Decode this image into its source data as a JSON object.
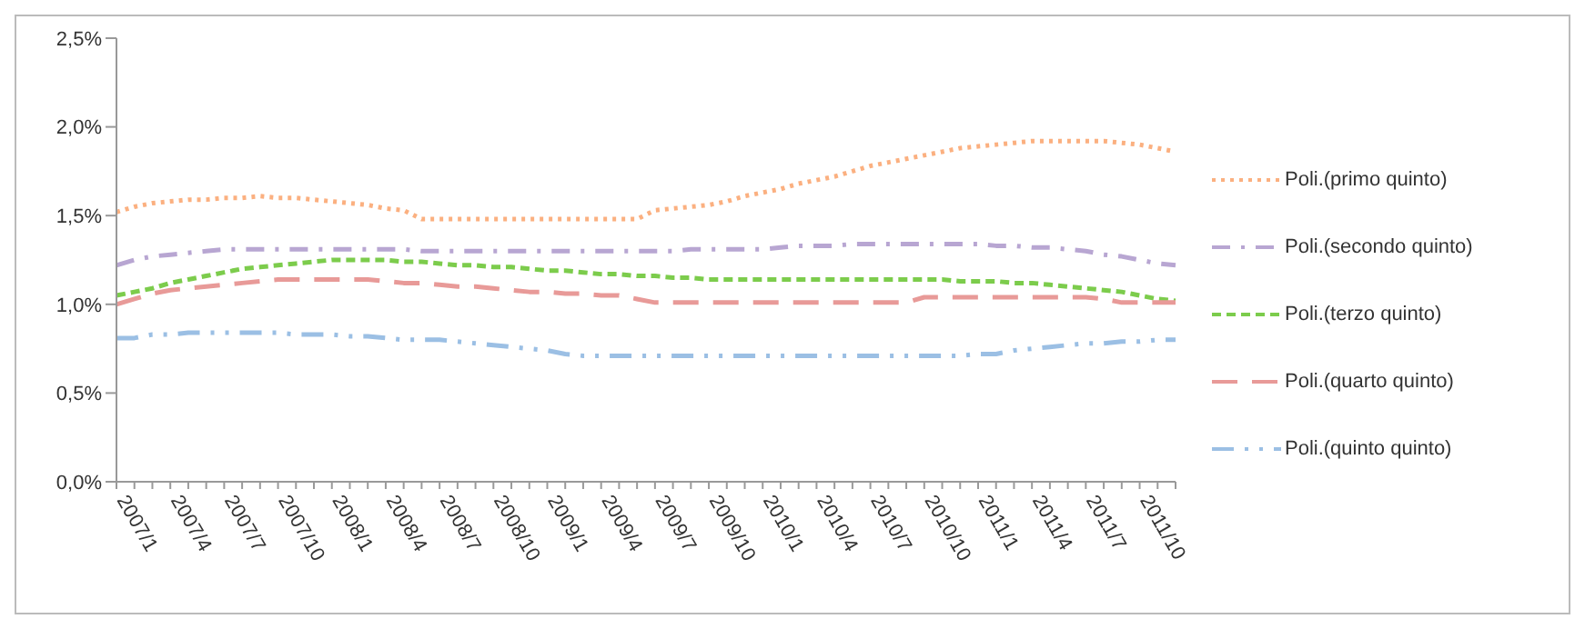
{
  "chart_data": {
    "type": "line",
    "categories": [
      "2007/1",
      null,
      null,
      "2007/4",
      null,
      null,
      "2007/7",
      null,
      null,
      "2007/10",
      null,
      null,
      "2008/1",
      null,
      null,
      "2008/4",
      null,
      null,
      "2008/7",
      null,
      null,
      "2008/10",
      null,
      null,
      "2009/1",
      null,
      null,
      "2009/4",
      null,
      null,
      "2009/7",
      null,
      null,
      "2009/10",
      null,
      null,
      "2010/1",
      null,
      null,
      "2010/4",
      null,
      null,
      "2010/7",
      null,
      null,
      "2010/10",
      null,
      null,
      "2011/1",
      null,
      null,
      "2011/4",
      null,
      null,
      "2011/7",
      null,
      null,
      "2011/10",
      null,
      null
    ],
    "series": [
      {
        "name": "Poli.(primo quinto)",
        "color": "#fbb080",
        "line_style": "dotted",
        "values": [
          1.52,
          1.55,
          1.57,
          1.58,
          1.59,
          1.59,
          1.6,
          1.6,
          1.61,
          1.6,
          1.6,
          1.59,
          1.58,
          1.57,
          1.56,
          1.54,
          1.53,
          1.48,
          1.48,
          1.48,
          1.48,
          1.48,
          1.48,
          1.48,
          1.48,
          1.48,
          1.48,
          1.48,
          1.48,
          1.48,
          1.53,
          1.54,
          1.55,
          1.56,
          1.58,
          1.61,
          1.63,
          1.65,
          1.68,
          1.7,
          1.72,
          1.75,
          1.78,
          1.8,
          1.82,
          1.84,
          1.86,
          1.88,
          1.89,
          1.9,
          1.91,
          1.92,
          1.92,
          1.92,
          1.92,
          1.92,
          1.91,
          1.9,
          1.88,
          1.86
        ]
      },
      {
        "name": "Poli.(secondo quinto)",
        "color": "#b8a6d2",
        "line_style": "dashed",
        "values": [
          1.22,
          1.25,
          1.27,
          1.28,
          1.29,
          1.3,
          1.31,
          1.31,
          1.31,
          1.31,
          1.31,
          1.31,
          1.31,
          1.31,
          1.31,
          1.31,
          1.31,
          1.3,
          1.3,
          1.3,
          1.3,
          1.3,
          1.3,
          1.3,
          1.3,
          1.3,
          1.3,
          1.3,
          1.3,
          1.3,
          1.3,
          1.3,
          1.31,
          1.31,
          1.31,
          1.31,
          1.31,
          1.32,
          1.33,
          1.33,
          1.33,
          1.34,
          1.34,
          1.34,
          1.34,
          1.34,
          1.34,
          1.34,
          1.34,
          1.33,
          1.33,
          1.32,
          1.32,
          1.31,
          1.3,
          1.28,
          1.27,
          1.25,
          1.23,
          1.22
        ]
      },
      {
        "name": "Poli.(terzo quinto)",
        "color": "#7ccc4c",
        "line_style": "dashed",
        "values": [
          1.05,
          1.07,
          1.09,
          1.12,
          1.14,
          1.16,
          1.18,
          1.2,
          1.21,
          1.22,
          1.23,
          1.24,
          1.25,
          1.25,
          1.25,
          1.25,
          1.24,
          1.24,
          1.23,
          1.22,
          1.22,
          1.21,
          1.21,
          1.2,
          1.19,
          1.19,
          1.18,
          1.17,
          1.17,
          1.16,
          1.16,
          1.15,
          1.15,
          1.14,
          1.14,
          1.14,
          1.14,
          1.14,
          1.14,
          1.14,
          1.14,
          1.14,
          1.14,
          1.14,
          1.14,
          1.14,
          1.14,
          1.13,
          1.13,
          1.13,
          1.12,
          1.12,
          1.11,
          1.1,
          1.09,
          1.08,
          1.07,
          1.05,
          1.03,
          1.02
        ]
      },
      {
        "name": "Poli.(quarto quinto)",
        "color": "#e89a98",
        "line_style": "dashed",
        "values": [
          1.0,
          1.03,
          1.06,
          1.08,
          1.09,
          1.1,
          1.11,
          1.12,
          1.13,
          1.14,
          1.14,
          1.14,
          1.14,
          1.14,
          1.14,
          1.13,
          1.12,
          1.12,
          1.11,
          1.1,
          1.1,
          1.09,
          1.08,
          1.07,
          1.07,
          1.06,
          1.06,
          1.05,
          1.05,
          1.03,
          1.01,
          1.01,
          1.01,
          1.01,
          1.01,
          1.01,
          1.01,
          1.01,
          1.01,
          1.01,
          1.01,
          1.01,
          1.01,
          1.01,
          1.01,
          1.04,
          1.04,
          1.04,
          1.04,
          1.04,
          1.04,
          1.04,
          1.04,
          1.04,
          1.04,
          1.03,
          1.01,
          1.01,
          1.01,
          1.01
        ]
      },
      {
        "name": "Poli.(quinto quinto)",
        "color": "#9bbfe4",
        "line_style": "dashed",
        "values": [
          0.81,
          0.81,
          0.83,
          0.83,
          0.84,
          0.84,
          0.84,
          0.84,
          0.84,
          0.84,
          0.83,
          0.83,
          0.83,
          0.82,
          0.82,
          0.81,
          0.8,
          0.8,
          0.8,
          0.79,
          0.78,
          0.77,
          0.76,
          0.75,
          0.74,
          0.72,
          0.71,
          0.71,
          0.71,
          0.71,
          0.71,
          0.71,
          0.71,
          0.71,
          0.71,
          0.71,
          0.71,
          0.71,
          0.71,
          0.71,
          0.71,
          0.71,
          0.71,
          0.71,
          0.71,
          0.71,
          0.71,
          0.71,
          0.72,
          0.72,
          0.74,
          0.75,
          0.76,
          0.77,
          0.78,
          0.78,
          0.79,
          0.79,
          0.8,
          0.8
        ]
      }
    ],
    "ylim": [
      0,
      2.5
    ],
    "yticks": [
      {
        "value": 0,
        "label": "0,0%"
      },
      {
        "value": 0.5,
        "label": "0,5%"
      },
      {
        "value": 1,
        "label": "1,0%"
      },
      {
        "value": 1.5,
        "label": "1,5%"
      },
      {
        "value": 2,
        "label": "2,0%"
      },
      {
        "value": 2.5,
        "label": "2,5%"
      }
    ],
    "grid": false,
    "legend": "right",
    "marker": "none"
  }
}
